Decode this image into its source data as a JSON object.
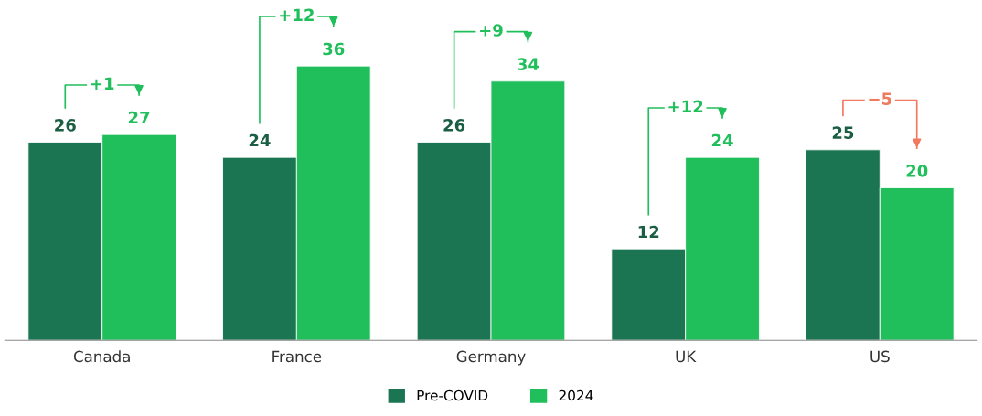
{
  "chart_data": {
    "type": "bar",
    "categories": [
      "Canada",
      "France",
      "Germany",
      "UK",
      "US"
    ],
    "series": [
      {
        "name": "Pre-COVID",
        "color": "#1b7552",
        "values": [
          26,
          24,
          26,
          12,
          25
        ]
      },
      {
        "name": "2024",
        "color": "#21bf5b",
        "values": [
          27,
          36,
          34,
          24,
          20
        ]
      }
    ],
    "ylim": [
      0,
      44
    ],
    "data_labels": true,
    "legend": "bottom",
    "grid": false,
    "tick_labels": "x",
    "annotations": [
      "+1",
      "+12",
      "+9",
      "+12",
      "−5"
    ]
  }
}
